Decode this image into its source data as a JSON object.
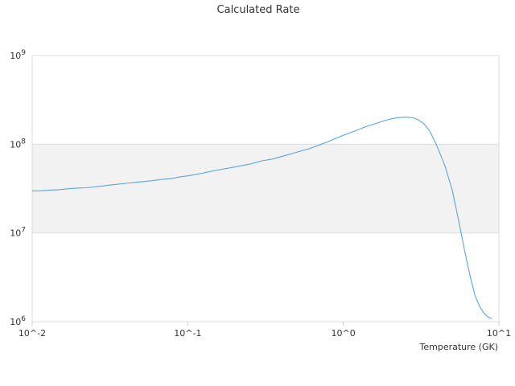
{
  "chart_data": {
    "type": "line",
    "title": "Calculated Rate",
    "xlabel": "Temperature (GK)",
    "ylabel": "",
    "x_scale": "log",
    "y_scale": "log",
    "xlim": [
      0.01,
      10
    ],
    "ylim": [
      1000000,
      1000000000
    ],
    "x_ticks": [
      "10^-2",
      "10^-1",
      "10^0",
      "10^1"
    ],
    "y_ticks": [
      "10^6",
      "10^7",
      "10^8",
      "10^9"
    ],
    "grid": true,
    "legend": "none",
    "band_color": "#f2f2f2",
    "series": [
      {
        "color": "#5ba4e0",
        "x": [
          0.01,
          0.0115,
          0.013,
          0.015,
          0.017,
          0.02,
          0.022,
          0.025,
          0.03,
          0.035,
          0.04,
          0.05,
          0.06,
          0.07,
          0.08,
          0.09,
          0.1,
          0.12,
          0.15,
          0.2,
          0.25,
          0.3,
          0.35,
          0.4,
          0.5,
          0.6,
          0.7,
          0.8,
          0.9,
          1.0,
          1.2,
          1.4,
          1.6,
          1.8,
          2.0,
          2.2,
          2.5,
          2.8,
          3.0,
          3.3,
          3.6,
          4.0,
          4.5,
          5.0,
          5.5,
          6.0,
          6.5,
          7.0,
          7.5,
          8.0,
          8.5,
          9.0
        ],
        "y": [
          29800000,
          29900000,
          30400000,
          30700000,
          31500000,
          32100000,
          32300000,
          33000000,
          34200000,
          35300000,
          36200000,
          37700000,
          38900000,
          40400000,
          41200000,
          43000000,
          44000000,
          46500000,
          50600000,
          55300000,
          59600000,
          65000000,
          68000000,
          72500000,
          81000000,
          88700000,
          98000000,
          107000000,
          117000000,
          126000000,
          142000000,
          158000000,
          170000000,
          182000000,
          192000000,
          198000000,
          202000000,
          199000000,
          190000000,
          170000000,
          140000000,
          95000000,
          57000000,
          31000000,
          14000000,
          6500000,
          3400000,
          2000000,
          1500000,
          1250000,
          1130000,
          1080000
        ]
      }
    ]
  }
}
